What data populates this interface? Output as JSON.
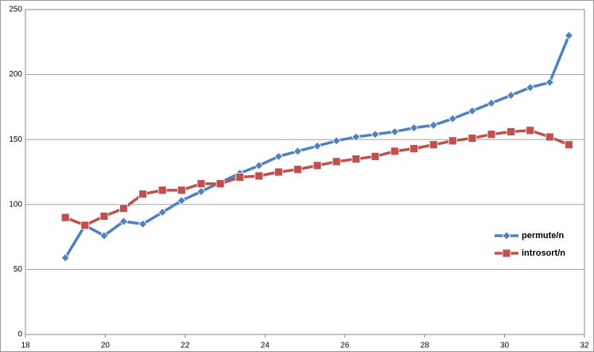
{
  "chart_data": {
    "type": "line",
    "x": [
      19,
      19.49,
      19.97,
      20.46,
      20.94,
      21.43,
      21.91,
      22.4,
      22.88,
      23.37,
      23.85,
      24.34,
      24.82,
      25.31,
      25.79,
      26.28,
      26.76,
      27.25,
      27.73,
      28.22,
      28.7,
      29.19,
      29.67,
      30.16,
      30.64,
      31.13,
      31.61
    ],
    "series": [
      {
        "name": "permute/n",
        "color": "#4f81bd",
        "marker": "diamond",
        "values": [
          59,
          84,
          76,
          87,
          85,
          94,
          103,
          110,
          117,
          124,
          130,
          137,
          141,
          145,
          149,
          152,
          154,
          156,
          159,
          161,
          166,
          172,
          178,
          184,
          190,
          194,
          230
        ]
      },
      {
        "name": "introsort/n",
        "color": "#c0504d",
        "marker": "square",
        "values": [
          90,
          84,
          91,
          97,
          108,
          111,
          111,
          116,
          116,
          121,
          122,
          125,
          127,
          130,
          133,
          135,
          137,
          141,
          143,
          146,
          149,
          151,
          154,
          156,
          157,
          152,
          146
        ]
      }
    ],
    "xlim": [
      18,
      32
    ],
    "xticks": [
      18,
      20,
      22,
      24,
      26,
      28,
      30,
      32
    ],
    "ylim": [
      0,
      250
    ],
    "yticks": [
      0,
      50,
      100,
      150,
      200,
      250
    ],
    "grid": true,
    "legend": "right"
  }
}
